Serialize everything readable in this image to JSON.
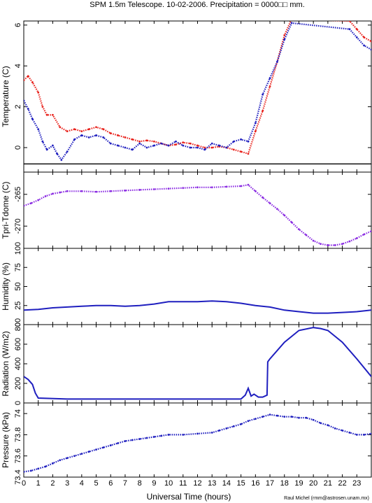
{
  "title": "SPM 1.5m Telescope. 10-02-2006. Precipitation = 0000□□ mm.",
  "credit": "Raul Michel (rmm@astrosen.unam.mx)",
  "xlabel": "Universal Time (hours)",
  "x_ticks": [
    0,
    1,
    2,
    3,
    4,
    5,
    6,
    7,
    8,
    9,
    10,
    11,
    12,
    13,
    14,
    15,
    16,
    17,
    18,
    19,
    20,
    21,
    22,
    23
  ],
  "x_range": [
    0,
    24
  ],
  "chart_data": [
    {
      "type": "scatter",
      "ylabel": "Temperature (C)",
      "ylim": [
        -1.2,
        6.2
      ],
      "y_ticks": [
        0,
        2,
        4,
        6
      ],
      "reference_line_y": -0.8,
      "series": [
        {
          "color": "#e8201a",
          "x": [
            0,
            0.3,
            0.6,
            1,
            1.3,
            1.6,
            2,
            2.5,
            3,
            3.5,
            4,
            4.5,
            5,
            5.5,
            6,
            6.5,
            7,
            7.5,
            8,
            8.5,
            9,
            9.5,
            10,
            10.5,
            11,
            11.5,
            12,
            12.5,
            13,
            13.5,
            14,
            14.5,
            15,
            15.5,
            16,
            16.5,
            17,
            17.5,
            18,
            18.5,
            22.5,
            23,
            23.5,
            24
          ],
          "y": [
            3.3,
            3.5,
            3.2,
            2.7,
            2.0,
            1.6,
            1.6,
            1.0,
            0.8,
            0.9,
            0.8,
            0.9,
            1.0,
            0.9,
            0.7,
            0.6,
            0.5,
            0.4,
            0.3,
            0.35,
            0.3,
            0.2,
            0.1,
            0.15,
            0.25,
            0.2,
            0.1,
            0.0,
            0.0,
            0.05,
            0.0,
            -0.1,
            -0.2,
            -0.3,
            0.8,
            1.8,
            3.0,
            4.2,
            5.5,
            6.3,
            6.2,
            5.8,
            5.4,
            5.2
          ]
        },
        {
          "color": "#1f1fbf",
          "x": [
            0,
            0.3,
            0.6,
            1,
            1.3,
            1.6,
            2,
            2.3,
            2.6,
            3,
            3.5,
            4,
            4.5,
            5,
            5.5,
            6,
            6.5,
            7,
            7.5,
            8,
            8.5,
            9,
            9.5,
            10,
            10.5,
            11,
            11.5,
            12,
            12.5,
            13,
            13.5,
            14,
            14.5,
            15,
            15.5,
            16,
            16.5,
            17,
            17.5,
            18,
            18.5,
            22.5,
            23,
            23.5,
            24
          ],
          "y": [
            2.3,
            1.9,
            1.4,
            0.9,
            0.3,
            -0.1,
            0.1,
            -0.3,
            -0.6,
            -0.2,
            0.4,
            0.6,
            0.5,
            0.6,
            0.5,
            0.2,
            0.1,
            0.0,
            -0.1,
            0.2,
            0.0,
            0.1,
            0.2,
            0.1,
            0.3,
            0.1,
            0.0,
            0.0,
            -0.1,
            0.2,
            0.1,
            0.0,
            0.3,
            0.4,
            0.3,
            1.2,
            2.6,
            3.4,
            4.2,
            5.3,
            6.1,
            5.8,
            5.4,
            5.0,
            4.8
          ]
        }
      ]
    },
    {
      "type": "scatter",
      "ylabel": "Tpri-Tdome (C)",
      "ylim": [
        -273.5,
        -261.5
      ],
      "y_ticks": [
        -265,
        -270
      ],
      "series": [
        {
          "color": "#8a2be2",
          "x": [
            0,
            0.5,
            1,
            1.5,
            2,
            2.5,
            3,
            4,
            5,
            6,
            7,
            8,
            9,
            10,
            11,
            12,
            13,
            14,
            15,
            15.5,
            16,
            16.5,
            17,
            17.5,
            18,
            18.5,
            19,
            19.5,
            20,
            20.5,
            21,
            21.5,
            22,
            22.5,
            23,
            23.5,
            24
          ],
          "y": [
            -266.8,
            -266.4,
            -265.9,
            -265.3,
            -264.9,
            -264.7,
            -264.5,
            -264.5,
            -264.6,
            -264.5,
            -264.4,
            -264.3,
            -264.2,
            -264.1,
            -264.0,
            -263.9,
            -263.9,
            -263.8,
            -263.7,
            -263.5,
            -264.5,
            -265.5,
            -266.4,
            -267.3,
            -268.3,
            -269.4,
            -270.5,
            -271.4,
            -272.3,
            -272.8,
            -273.0,
            -273.0,
            -272.8,
            -272.4,
            -271.9,
            -271.3,
            -270.8
          ]
        }
      ]
    },
    {
      "type": "line",
      "ylabel": "Humidity (%)",
      "ylim": [
        0,
        100
      ],
      "y_ticks": [
        0,
        25,
        50,
        75,
        100
      ],
      "series": [
        {
          "color": "#1f1fbf",
          "x": [
            0,
            1,
            2,
            3,
            4,
            5,
            6,
            7,
            8,
            9,
            10,
            11,
            12,
            13,
            14,
            15,
            16,
            17,
            18,
            19,
            20,
            21,
            22,
            23,
            24
          ],
          "y": [
            19,
            20,
            22,
            23,
            24,
            25,
            25,
            24,
            25,
            27,
            30,
            30,
            30,
            31,
            30,
            28,
            25,
            23,
            19,
            17,
            15,
            15,
            16,
            17,
            19
          ]
        }
      ]
    },
    {
      "type": "line",
      "ylabel": "Radiation (W/m2)",
      "ylim": [
        0,
        800
      ],
      "y_ticks": [
        0,
        200,
        400,
        600,
        800
      ],
      "series": [
        {
          "color": "#1f1fbf",
          "x": [
            0,
            0.3,
            0.6,
            0.8,
            1,
            3,
            6,
            9,
            12,
            15,
            15.3,
            15.5,
            15.7,
            15.9,
            16.2,
            16.5,
            16.8,
            16.85,
            17,
            18,
            19,
            20,
            20.5,
            21,
            22,
            23,
            24
          ],
          "y": [
            270,
            240,
            190,
            100,
            50,
            40,
            40,
            40,
            40,
            40,
            80,
            150,
            70,
            90,
            60,
            60,
            80,
            420,
            450,
            620,
            740,
            770,
            760,
            740,
            620,
            450,
            270
          ]
        }
      ]
    },
    {
      "type": "scatter",
      "ylabel": "Pressure (kPa)",
      "ylim": [
        73.4,
        74.1
      ],
      "y_ticks": [
        73.4,
        73.6,
        73.8,
        74
      ],
      "series": [
        {
          "color": "#1f1fbf",
          "x": [
            0,
            0.5,
            1,
            1.5,
            2,
            2.5,
            3,
            3.5,
            4,
            4.5,
            5,
            5.5,
            6,
            6.5,
            7,
            7.5,
            8,
            8.5,
            9,
            9.5,
            10,
            11,
            12,
            13,
            13.5,
            14,
            14.5,
            15,
            15.5,
            16,
            16.5,
            17,
            17.5,
            18,
            18.5,
            19,
            19.5,
            20,
            20.5,
            21,
            21.5,
            22,
            22.5,
            23,
            23.5,
            24
          ],
          "y": [
            73.45,
            73.46,
            73.48,
            73.5,
            73.53,
            73.56,
            73.58,
            73.6,
            73.62,
            73.64,
            73.66,
            73.68,
            73.7,
            73.72,
            73.74,
            73.75,
            73.76,
            73.77,
            73.78,
            73.79,
            73.8,
            73.8,
            73.81,
            73.82,
            73.84,
            73.86,
            73.88,
            73.9,
            73.93,
            73.95,
            73.97,
            73.99,
            73.98,
            73.97,
            73.97,
            73.96,
            73.96,
            73.94,
            73.91,
            73.89,
            73.86,
            73.84,
            73.82,
            73.8,
            73.8,
            73.81
          ]
        }
      ]
    }
  ]
}
